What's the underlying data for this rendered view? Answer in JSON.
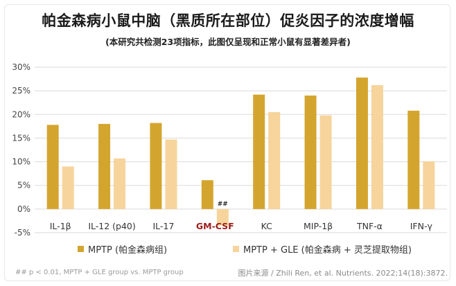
{
  "header": {
    "title": "帕金森病小鼠中脑（黑质所在部位）促炎因子的浓度增幅",
    "subtitle": "(本研究共检测23项指标，此图仅呈现和正常小鼠有显著差异者)"
  },
  "chart_data": {
    "type": "bar",
    "categories": [
      "IL-1β",
      "IL-12 (p40)",
      "IL-17",
      "GM-CSF",
      "KC",
      "MIP-1β",
      "TNF-α",
      "IFN-γ"
    ],
    "highlight_category": "GM-CSF",
    "highlight_color": "#9c1c1c",
    "series": [
      {
        "name": "MPTP (帕金森病组)",
        "color": "#d4a52e",
        "values": [
          17.8,
          18.0,
          18.2,
          6.1,
          24.2,
          24.0,
          27.8,
          20.8
        ]
      },
      {
        "name": "MPTP + GLE (帕金森病 + 灵芝提取物组)",
        "color": "#f6d49b",
        "values": [
          9.0,
          10.7,
          14.7,
          -3.5,
          20.5,
          19.8,
          26.2,
          10.1
        ]
      }
    ],
    "annotations": [
      {
        "category": "GM-CSF",
        "series": 1,
        "text": "##"
      }
    ],
    "ylim": [
      -5,
      30
    ],
    "yticks": [
      -5,
      0,
      5,
      10,
      15,
      20,
      25,
      30
    ],
    "ytick_labels": [
      "-5%",
      "0%",
      "5%",
      "10%",
      "15%",
      "20%",
      "25%",
      "30%"
    ],
    "grid": true,
    "legend_position": "bottom"
  },
  "legend": {
    "items": [
      {
        "label": "MPTP (帕金森病组)",
        "color": "#d4a52e"
      },
      {
        "label": "MPTP + GLE (帕金森病 + 灵芝提取物组)",
        "color": "#f6d49b"
      }
    ]
  },
  "footer": {
    "footnote": "## p < 0.01, MPTP + GLE group vs. MPTP group",
    "source": "图片来源 / Zhili Ren, et al. Nutrients. 2022;14(18):3872."
  }
}
